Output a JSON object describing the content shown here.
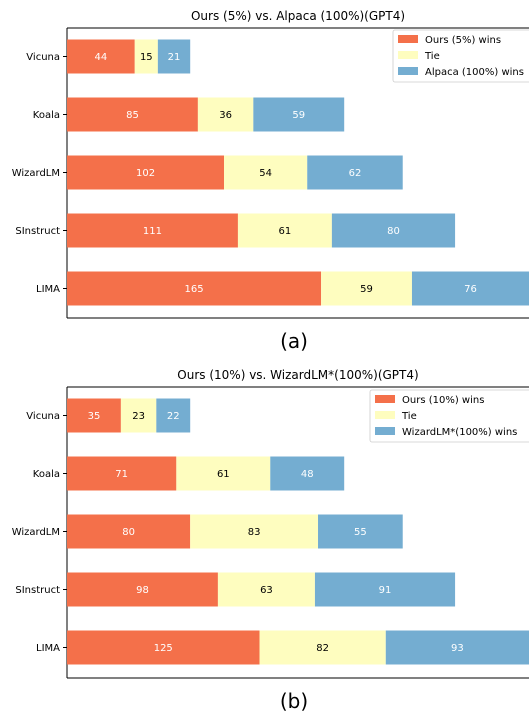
{
  "colors": {
    "ours": "#f4704a",
    "tie": "#fefdbf",
    "baseline": "#74add1"
  },
  "chart_data": [
    {
      "type": "bar",
      "orientation": "horizontal",
      "stacked": true,
      "title": "Ours (5%) vs. Alpaca (100%)(GPT4)",
      "categories": [
        "Vicuna",
        "Koala",
        "WizardLM",
        "SInstruct",
        "LIMA"
      ],
      "series": [
        {
          "name": "Ours (5%) wins",
          "values": [
            44,
            85,
            102,
            111,
            165
          ]
        },
        {
          "name": "Tie",
          "values": [
            15,
            36,
            54,
            61,
            59
          ]
        },
        {
          "name": "Alpaca (100%) wins",
          "values": [
            21,
            59,
            62,
            80,
            76
          ]
        }
      ],
      "xlim": [
        0,
        300
      ],
      "legend_position": "top-right",
      "caption": "(a)"
    },
    {
      "type": "bar",
      "orientation": "horizontal",
      "stacked": true,
      "title": "Ours (10%) vs. WizardLM*(100%)(GPT4)",
      "categories": [
        "Vicuna",
        "Koala",
        "WizardLM",
        "SInstruct",
        "LIMA"
      ],
      "series": [
        {
          "name": "Ours (10%) wins",
          "values": [
            35,
            71,
            80,
            98,
            125
          ]
        },
        {
          "name": "Tie",
          "values": [
            23,
            61,
            83,
            63,
            82
          ]
        },
        {
          "name": "WizardLM*(100%) wins",
          "values": [
            22,
            48,
            55,
            91,
            93
          ]
        }
      ],
      "xlim": [
        0,
        300
      ],
      "legend_position": "top-right",
      "caption": "(b)"
    }
  ]
}
